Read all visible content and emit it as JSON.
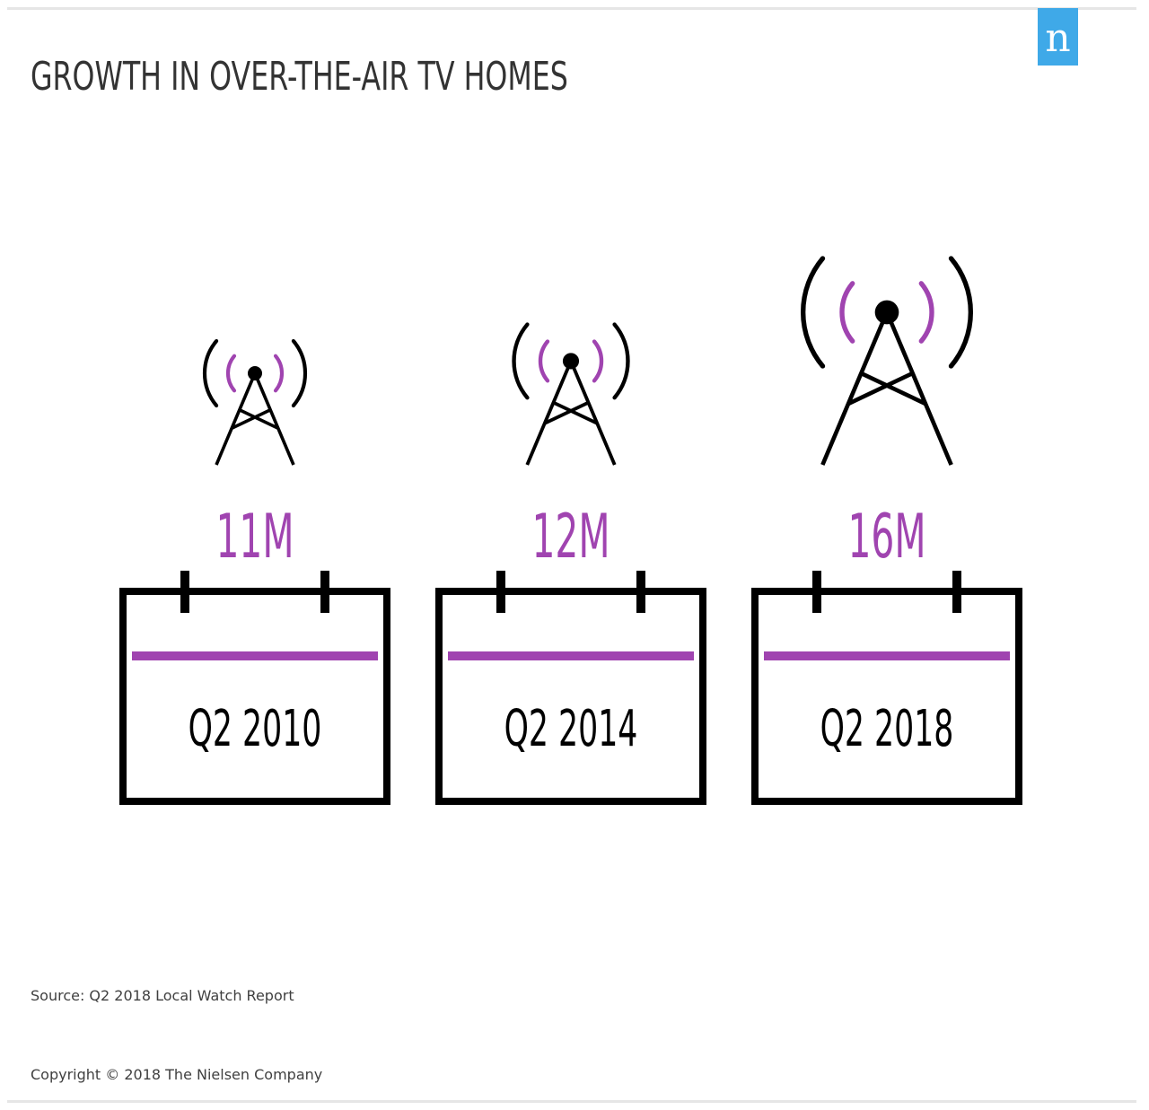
{
  "title": "GROWTH IN OVER-THE-AIR TV HOMES",
  "logo": {
    "letter": "n",
    "color": "#3fa9e8"
  },
  "colors": {
    "accent": "#a044b0",
    "ink": "#000000",
    "title": "#333333"
  },
  "icons": {
    "tower": "broadcast-tower-icon",
    "calendar": "calendar-icon"
  },
  "chart_data": {
    "type": "bar",
    "categories": [
      "Q2 2010",
      "Q2 2014",
      "Q2 2018"
    ],
    "values": [
      11,
      12,
      16
    ],
    "value_labels": [
      "11M",
      "12M",
      "16M"
    ],
    "unit": "M",
    "title": "GROWTH IN OVER-THE-AIR TV HOMES"
  },
  "footer": {
    "source": "Source: Q2 2018 Local Watch Report",
    "copyright": "Copyright © 2018 The Nielsen Company"
  }
}
